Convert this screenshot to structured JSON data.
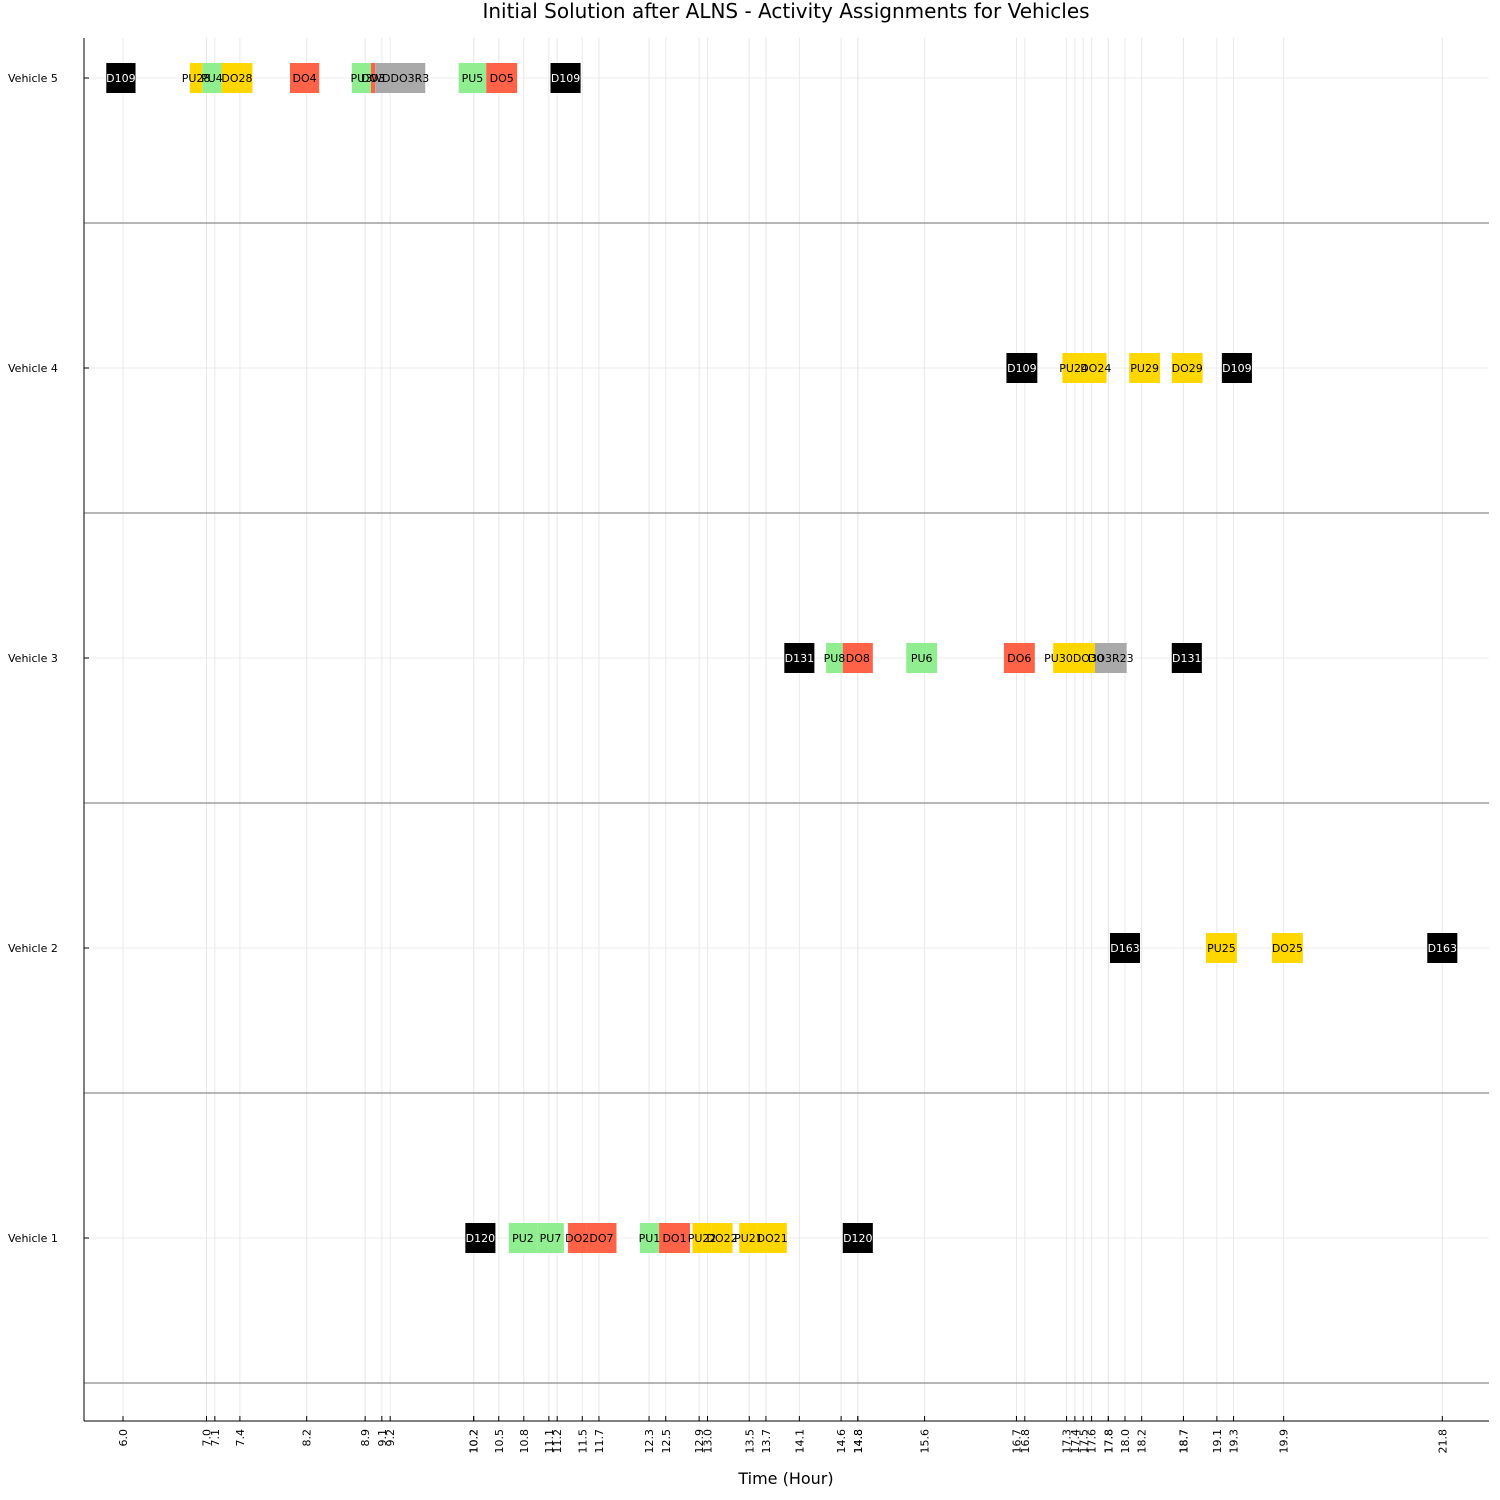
{
  "chart_data": {
    "type": "gantt",
    "title": "Initial Solution after ALNS - Activity Assignments for Vehicles",
    "xlabel": "Time (Hour)",
    "ylabel": "",
    "xlim": [
      5.4,
      22.4
    ],
    "grid": true,
    "legend": "none",
    "rows": [
      "Vehicle 1",
      "Vehicle 2",
      "Vehicle 3",
      "Vehicle 4",
      "Vehicle 5"
    ],
    "x_ticks": [
      "6.0",
      "7.0",
      "7.1",
      "7.4",
      "8.2",
      "8.9",
      "9.1",
      "9.2",
      "10.2",
      "10.2",
      "10.5",
      "10.8",
      "11.1",
      "11.2",
      "11.5",
      "11.7",
      "12.3",
      "12.5",
      "12.9",
      "13.0",
      "13.5",
      "13.7",
      "14.1",
      "14.6",
      "14.8",
      "14.8",
      "15.6",
      "16.7",
      "16.8",
      "17.3",
      "17.4",
      "17.5",
      "17.6",
      "17.8",
      "17.8",
      "18.0",
      "18.2",
      "18.7",
      "18.7",
      "19.1",
      "19.3",
      "19.9",
      "21.8"
    ],
    "colors": {
      "depot": "#000000",
      "pickup_green": "#90ee90",
      "dropoff_red": "#ff6347",
      "gold": "#ffd700",
      "gray": "#a9a9a9"
    },
    "activities": [
      {
        "vehicle": "Vehicle 5",
        "start": 5.8,
        "end": 6.15,
        "label": "D109",
        "color": "#000000"
      },
      {
        "vehicle": "Vehicle 5",
        "start": 6.8,
        "end": 6.95,
        "label": "PU28",
        "color": "#ffd700"
      },
      {
        "vehicle": "Vehicle 5",
        "start": 6.95,
        "end": 7.18,
        "label": "PU4",
        "color": "#90ee90"
      },
      {
        "vehicle": "Vehicle 5",
        "start": 7.18,
        "end": 7.55,
        "label": "DO28",
        "color": "#ffd700"
      },
      {
        "vehicle": "Vehicle 5",
        "start": 8.0,
        "end": 8.35,
        "label": "DO4",
        "color": "#ff6347"
      },
      {
        "vehicle": "Vehicle 5",
        "start": 8.74,
        "end": 8.97,
        "label": "PU3",
        "color": "#90ee90"
      },
      {
        "vehicle": "Vehicle 5",
        "start": 8.97,
        "end": 9.02,
        "label": "DO3",
        "color": "#ff6347"
      },
      {
        "vehicle": "Vehicle 5",
        "start": 9.02,
        "end": 9.62,
        "label": "WDDO3R3",
        "color": "#a9a9a9"
      },
      {
        "vehicle": "Vehicle 5",
        "start": 10.02,
        "end": 10.35,
        "label": "PU5",
        "color": "#90ee90"
      },
      {
        "vehicle": "Vehicle 5",
        "start": 10.35,
        "end": 10.72,
        "label": "DO5",
        "color": "#ff6347"
      },
      {
        "vehicle": "Vehicle 5",
        "start": 11.12,
        "end": 11.48,
        "label": "D109",
        "color": "#000000"
      },
      {
        "vehicle": "Vehicle 4",
        "start": 16.58,
        "end": 16.95,
        "label": "D109",
        "color": "#000000"
      },
      {
        "vehicle": "Vehicle 4",
        "start": 17.25,
        "end": 17.52,
        "label": "PU24",
        "color": "#ffd700"
      },
      {
        "vehicle": "Vehicle 4",
        "start": 17.52,
        "end": 17.78,
        "label": "DO24",
        "color": "#ffd700"
      },
      {
        "vehicle": "Vehicle 4",
        "start": 18.05,
        "end": 18.42,
        "label": "PU29",
        "color": "#ffd700"
      },
      {
        "vehicle": "Vehicle 4",
        "start": 18.56,
        "end": 18.93,
        "label": "DO29",
        "color": "#ffd700"
      },
      {
        "vehicle": "Vehicle 4",
        "start": 19.16,
        "end": 19.52,
        "label": "D109",
        "color": "#000000"
      },
      {
        "vehicle": "Vehicle 3",
        "start": 13.92,
        "end": 14.28,
        "label": "D131",
        "color": "#000000"
      },
      {
        "vehicle": "Vehicle 3",
        "start": 14.42,
        "end": 14.62,
        "label": "PU8",
        "color": "#90ee90"
      },
      {
        "vehicle": "Vehicle 3",
        "start": 14.62,
        "end": 14.98,
        "label": "DO8",
        "color": "#ff6347"
      },
      {
        "vehicle": "Vehicle 3",
        "start": 15.38,
        "end": 15.75,
        "label": "PU6",
        "color": "#90ee90"
      },
      {
        "vehicle": "Vehicle 3",
        "start": 16.55,
        "end": 16.92,
        "label": "DO6",
        "color": "#ff6347"
      },
      {
        "vehicle": "Vehicle 3",
        "start": 17.14,
        "end": 17.64,
        "label": "PU30DO30",
        "color": "#ffd700"
      },
      {
        "vehicle": "Vehicle 3",
        "start": 17.64,
        "end": 18.02,
        "label": "DO3R23",
        "color": "#a9a9a9"
      },
      {
        "vehicle": "Vehicle 3",
        "start": 18.56,
        "end": 18.92,
        "label": "D131",
        "color": "#000000"
      },
      {
        "vehicle": "Vehicle 2",
        "start": 17.82,
        "end": 18.18,
        "label": "D163",
        "color": "#000000"
      },
      {
        "vehicle": "Vehicle 2",
        "start": 18.97,
        "end": 19.34,
        "label": "PU25",
        "color": "#ffd700"
      },
      {
        "vehicle": "Vehicle 2",
        "start": 19.76,
        "end": 20.13,
        "label": "DO25",
        "color": "#ffd700"
      },
      {
        "vehicle": "Vehicle 2",
        "start": 21.62,
        "end": 21.98,
        "label": "D163",
        "color": "#000000"
      },
      {
        "vehicle": "Vehicle 1",
        "start": 10.1,
        "end": 10.46,
        "label": "D120",
        "color": "#000000"
      },
      {
        "vehicle": "Vehicle 1",
        "start": 10.62,
        "end": 10.96,
        "label": "PU2",
        "color": "#90ee90"
      },
      {
        "vehicle": "Vehicle 1",
        "start": 10.96,
        "end": 11.28,
        "label": "PU7",
        "color": "#90ee90"
      },
      {
        "vehicle": "Vehicle 1",
        "start": 11.33,
        "end": 11.55,
        "label": "DO2",
        "color": "#ff6347"
      },
      {
        "vehicle": "Vehicle 1",
        "start": 11.55,
        "end": 11.91,
        "label": "DO7",
        "color": "#ff6347"
      },
      {
        "vehicle": "Vehicle 1",
        "start": 12.19,
        "end": 12.42,
        "label": "PU1",
        "color": "#90ee90"
      },
      {
        "vehicle": "Vehicle 1",
        "start": 12.42,
        "end": 12.79,
        "label": "DO1",
        "color": "#ff6347"
      },
      {
        "vehicle": "Vehicle 1",
        "start": 12.82,
        "end": 13.05,
        "label": "PU22",
        "color": "#ffd700"
      },
      {
        "vehicle": "Vehicle 1",
        "start": 13.05,
        "end": 13.3,
        "label": "DO22",
        "color": "#ffd700"
      },
      {
        "vehicle": "Vehicle 1",
        "start": 13.38,
        "end": 13.6,
        "label": "PU21",
        "color": "#ffd700"
      },
      {
        "vehicle": "Vehicle 1",
        "start": 13.6,
        "end": 13.95,
        "label": "DO21",
        "color": "#ffd700"
      },
      {
        "vehicle": "Vehicle 1",
        "start": 14.62,
        "end": 14.98,
        "label": "D120",
        "color": "#000000"
      }
    ]
  }
}
